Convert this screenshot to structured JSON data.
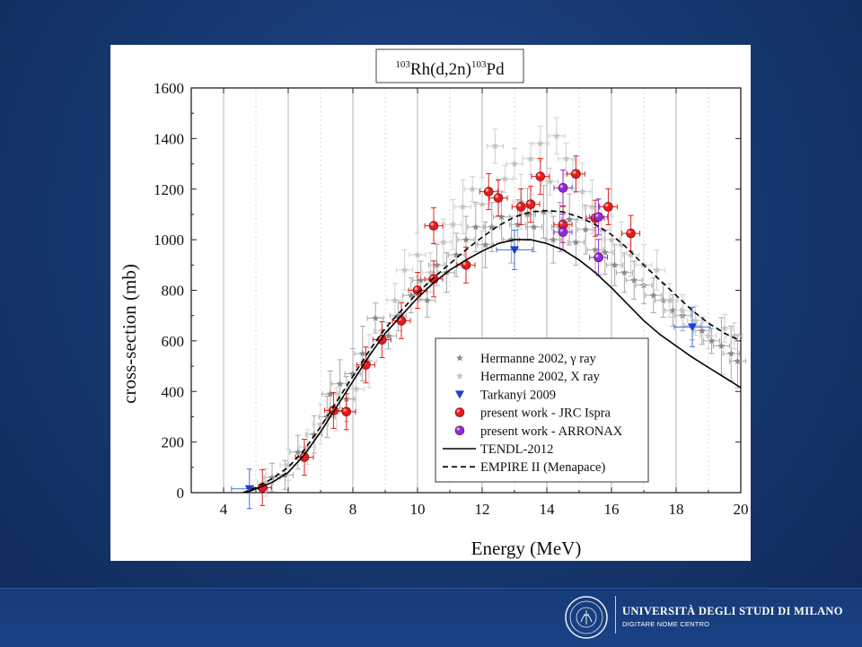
{
  "chart_data": {
    "type": "scatter",
    "title": "¹⁰³Rh(d,2n)¹⁰³Pd",
    "title_parts": {
      "a_mass": "103",
      "reaction": "Rh(d,2n)",
      "b_mass": "103",
      "product": "Pd"
    },
    "xlabel": "Energy (MeV)",
    "ylabel": "cross-section (mb)",
    "xlim": [
      3,
      20
    ],
    "ylim": [
      0,
      1600
    ],
    "xticks": [
      "4",
      "6",
      "8",
      "10",
      "12",
      "14",
      "16",
      "18",
      "20"
    ],
    "yticks": [
      "0",
      "200",
      "400",
      "600",
      "800",
      "1000",
      "1200",
      "1400",
      "1600"
    ],
    "grid": "vertical",
    "legend_position": "bottom-right",
    "series": [
      {
        "name": "Hermanne 2002, γ ray",
        "marker": "star",
        "color": "#8a8a8a",
        "points": [
          [
            5.5,
            60
          ],
          [
            5.9,
            70
          ],
          [
            6.3,
            160
          ],
          [
            6.8,
            230
          ],
          [
            7.2,
            300
          ],
          [
            7.3,
            390
          ],
          [
            7.6,
            430
          ],
          [
            7.8,
            370
          ],
          [
            8.0,
            470
          ],
          [
            8.3,
            550
          ],
          [
            8.7,
            690
          ],
          [
            9.1,
            620
          ],
          [
            9.4,
            700
          ],
          [
            9.8,
            780
          ],
          [
            10.1,
            840
          ],
          [
            10.3,
            760
          ],
          [
            10.6,
            900
          ],
          [
            10.9,
            870
          ],
          [
            11.2,
            940
          ],
          [
            11.5,
            1000
          ],
          [
            11.8,
            1050
          ],
          [
            12.1,
            980
          ],
          [
            12.3,
            1050
          ],
          [
            12.6,
            1090
          ],
          [
            12.9,
            1000
          ],
          [
            13.1,
            1060
          ],
          [
            13.4,
            1100
          ],
          [
            13.6,
            1050
          ],
          [
            13.9,
            1110
          ],
          [
            14.2,
            1000
          ],
          [
            14.4,
            1050
          ],
          [
            14.7,
            1080
          ],
          [
            14.9,
            990
          ],
          [
            15.2,
            1040
          ],
          [
            15.5,
            960
          ],
          [
            15.8,
            950
          ],
          [
            16.1,
            900
          ],
          [
            16.4,
            870
          ],
          [
            16.7,
            840
          ],
          [
            17.0,
            820
          ],
          [
            17.3,
            780
          ],
          [
            17.6,
            760
          ],
          [
            17.9,
            720
          ],
          [
            18.2,
            700
          ],
          [
            18.5,
            660
          ],
          [
            18.8,
            640
          ],
          [
            19.1,
            600
          ],
          [
            19.4,
            580
          ],
          [
            19.7,
            550
          ],
          [
            19.9,
            520
          ]
        ]
      },
      {
        "name": "Hermanne 2002, X ray",
        "marker": "star",
        "color": "#c2c2c2",
        "points": [
          [
            5.3,
            40
          ],
          [
            6.0,
            110
          ],
          [
            6.6,
            180
          ],
          [
            7.0,
            270
          ],
          [
            7.5,
            330
          ],
          [
            8.1,
            410
          ],
          [
            8.5,
            520
          ],
          [
            8.9,
            640
          ],
          [
            9.3,
            760
          ],
          [
            9.6,
            880
          ],
          [
            10.0,
            940
          ],
          [
            10.4,
            870
          ],
          [
            10.8,
            990
          ],
          [
            11.1,
            1060
          ],
          [
            11.4,
            1130
          ],
          [
            11.7,
            1200
          ],
          [
            12.0,
            1140
          ],
          [
            12.4,
            1370
          ],
          [
            12.7,
            1240
          ],
          [
            13.0,
            1300
          ],
          [
            13.2,
            1150
          ],
          [
            13.5,
            1320
          ],
          [
            13.8,
            1380
          ],
          [
            14.1,
            1230
          ],
          [
            14.3,
            1410
          ],
          [
            14.6,
            1320
          ],
          [
            14.8,
            1260
          ],
          [
            15.1,
            1190
          ],
          [
            15.4,
            1130
          ],
          [
            15.7,
            1040
          ],
          [
            16.0,
            1000
          ],
          [
            16.3,
            980
          ],
          [
            16.6,
            940
          ],
          [
            17.0,
            900
          ],
          [
            17.4,
            880
          ],
          [
            17.8,
            760
          ],
          [
            18.2,
            720
          ],
          [
            18.6,
            680
          ],
          [
            19.0,
            620
          ],
          [
            19.5,
            650
          ],
          [
            19.8,
            620
          ]
        ]
      },
      {
        "name": "Tarkanyi 2009",
        "marker": "triangle-down",
        "color": "#1a3fd0",
        "points": [
          [
            4.8,
            15
          ],
          [
            13.0,
            960
          ],
          [
            18.5,
            655
          ]
        ]
      },
      {
        "name": "present work - JRC Ispra",
        "marker": "circle",
        "color": "#e31c1c",
        "points": [
          [
            5.2,
            20
          ],
          [
            6.5,
            140
          ],
          [
            7.4,
            325
          ],
          [
            7.8,
            320
          ],
          [
            8.4,
            505
          ],
          [
            8.9,
            605
          ],
          [
            9.5,
            680
          ],
          [
            10.0,
            800
          ],
          [
            10.5,
            1055
          ],
          [
            10.5,
            845
          ],
          [
            11.5,
            900
          ],
          [
            12.2,
            1190
          ],
          [
            12.5,
            1165
          ],
          [
            13.2,
            1130
          ],
          [
            13.5,
            1140
          ],
          [
            13.8,
            1250
          ],
          [
            14.5,
            1060
          ],
          [
            14.9,
            1260
          ],
          [
            15.5,
            1085
          ],
          [
            15.9,
            1130
          ],
          [
            16.6,
            1025
          ]
        ]
      },
      {
        "name": "present work - ARRONAX",
        "marker": "circle",
        "color": "#8a2be2",
        "points": [
          [
            14.5,
            1205
          ],
          [
            15.6,
            1090
          ],
          [
            15.6,
            930
          ],
          [
            14.5,
            1030
          ]
        ]
      },
      {
        "name": "TENDL-2012",
        "style": "solid",
        "color": "#000000",
        "points": [
          [
            4.7,
            0
          ],
          [
            5.0,
            15
          ],
          [
            5.5,
            40
          ],
          [
            6.0,
            80
          ],
          [
            6.5,
            150
          ],
          [
            7.0,
            240
          ],
          [
            7.5,
            340
          ],
          [
            8.0,
            440
          ],
          [
            8.5,
            540
          ],
          [
            9.0,
            630
          ],
          [
            9.5,
            700
          ],
          [
            10.0,
            770
          ],
          [
            10.5,
            830
          ],
          [
            11.0,
            880
          ],
          [
            11.5,
            920
          ],
          [
            12.0,
            955
          ],
          [
            12.5,
            985
          ],
          [
            13.0,
            1000
          ],
          [
            13.5,
            1000
          ],
          [
            14.0,
            985
          ],
          [
            14.5,
            960
          ],
          [
            15.0,
            920
          ],
          [
            15.5,
            870
          ],
          [
            16.0,
            810
          ],
          [
            16.5,
            745
          ],
          [
            17.0,
            680
          ],
          [
            17.5,
            625
          ],
          [
            18.0,
            580
          ],
          [
            18.5,
            535
          ],
          [
            19.0,
            495
          ],
          [
            19.5,
            455
          ],
          [
            20.0,
            415
          ]
        ]
      },
      {
        "name": "EMPIRE II (Menapace)",
        "style": "dashed",
        "color": "#000000",
        "points": [
          [
            4.6,
            0
          ],
          [
            5.0,
            20
          ],
          [
            5.5,
            55
          ],
          [
            6.0,
            100
          ],
          [
            6.5,
            170
          ],
          [
            7.0,
            260
          ],
          [
            7.5,
            360
          ],
          [
            8.0,
            460
          ],
          [
            8.5,
            560
          ],
          [
            9.0,
            650
          ],
          [
            9.5,
            720
          ],
          [
            10.0,
            790
          ],
          [
            10.5,
            850
          ],
          [
            11.0,
            905
          ],
          [
            11.5,
            960
          ],
          [
            12.0,
            1010
          ],
          [
            12.5,
            1055
          ],
          [
            13.0,
            1090
          ],
          [
            13.5,
            1110
          ],
          [
            14.0,
            1115
          ],
          [
            14.5,
            1110
          ],
          [
            15.0,
            1090
          ],
          [
            15.5,
            1060
          ],
          [
            16.0,
            1020
          ],
          [
            16.5,
            965
          ],
          [
            17.0,
            900
          ],
          [
            17.5,
            840
          ],
          [
            18.0,
            780
          ],
          [
            18.5,
            720
          ],
          [
            19.0,
            670
          ],
          [
            19.5,
            630
          ],
          [
            20.0,
            600
          ]
        ]
      }
    ]
  },
  "footer": {
    "university": "UNIVERSITÀ DEGLI STUDI DI MILANO",
    "subtitle": "DIGITARE NOME CENTRO",
    "logo": "university-seal-icon"
  }
}
